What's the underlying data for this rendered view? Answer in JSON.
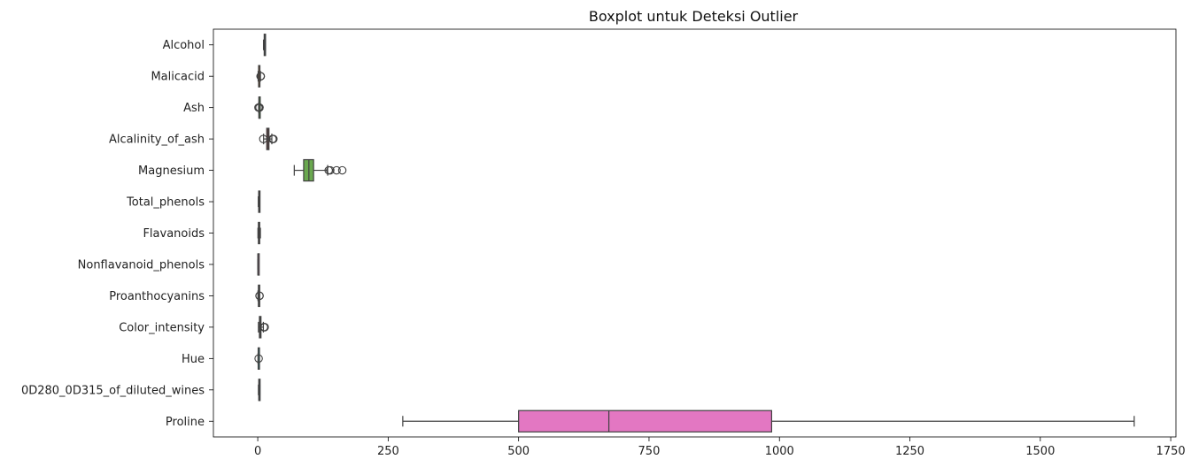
{
  "chart_data": {
    "type": "boxplot",
    "orientation": "horizontal",
    "title": "Boxplot untuk Deteksi Outlier",
    "xlabel": "",
    "ylabel": "",
    "xlim": [
      -85,
      1760
    ],
    "xticks": [
      0,
      250,
      500,
      750,
      1000,
      1250,
      1500,
      1750
    ],
    "grid": false,
    "legend": "none",
    "series": [
      {
        "name": "Alcohol",
        "color": "#3274a1",
        "min": 11.03,
        "q1": 12.36,
        "median": 13.05,
        "q3": 13.68,
        "max": 14.83,
        "outliers": []
      },
      {
        "name": "Malicacid",
        "color": "#e1812c",
        "min": 0.74,
        "q1": 1.6,
        "median": 1.87,
        "q3": 3.08,
        "max": 5.19,
        "outliers": [
          5.51,
          5.65,
          5.8
        ]
      },
      {
        "name": "Ash",
        "color": "#3a923a",
        "min": 1.7,
        "q1": 2.21,
        "median": 2.36,
        "q3": 2.56,
        "max": 3.07,
        "outliers": [
          1.36,
          3.22,
          3.23
        ]
      },
      {
        "name": "Alcalinity_of_ash",
        "color": "#c03d3e",
        "min": 11.2,
        "q1": 17.2,
        "median": 19.5,
        "q3": 21.5,
        "max": 27.0,
        "outliers": [
          10.6,
          28.5,
          30.0,
          28.5
        ]
      },
      {
        "name": "Magnesium",
        "color": "#6aa84f",
        "min": 70,
        "q1": 88,
        "median": 98,
        "q3": 107,
        "max": 134,
        "outliers": [
          136,
          139,
          151,
          162
        ]
      },
      {
        "name": "Total_phenols",
        "color": "#9372b2",
        "min": 0.98,
        "q1": 1.74,
        "median": 2.36,
        "q3": 2.8,
        "max": 3.88,
        "outliers": []
      },
      {
        "name": "Flavanoids",
        "color": "#845b53",
        "min": 0.34,
        "q1": 1.21,
        "median": 2.13,
        "q3": 2.88,
        "max": 5.08,
        "outliers": []
      },
      {
        "name": "Nonflavanoid_phenols",
        "color": "#d684bd",
        "min": 0.13,
        "q1": 0.27,
        "median": 0.34,
        "q3": 0.44,
        "max": 0.66,
        "outliers": []
      },
      {
        "name": "Proanthocyanins",
        "color": "#7f7f7f",
        "min": 0.41,
        "q1": 1.25,
        "median": 1.56,
        "q3": 1.95,
        "max": 2.96,
        "outliers": [
          3.28,
          3.58
        ]
      },
      {
        "name": "Color_intensity",
        "color": "#a9aa35",
        "min": 1.28,
        "q1": 3.22,
        "median": 4.69,
        "q3": 6.2,
        "max": 10.8,
        "outliers": [
          11.75,
          13.0,
          13.3
        ]
      },
      {
        "name": "Hue",
        "color": "#2ed0de",
        "min": 0.48,
        "q1": 0.78,
        "median": 0.97,
        "q3": 1.12,
        "max": 1.45,
        "outliers": [
          1.71
        ]
      },
      {
        "name": "0D280_0D315_of_diluted_wines",
        "color": "#3274a1",
        "min": 1.27,
        "q1": 1.94,
        "median": 2.78,
        "q3": 3.17,
        "max": 4.0,
        "outliers": []
      },
      {
        "name": "Proline",
        "color": "#e377c2",
        "min": 278,
        "q1": 500,
        "median": 673,
        "q3": 985,
        "max": 1680,
        "outliers": []
      }
    ]
  }
}
